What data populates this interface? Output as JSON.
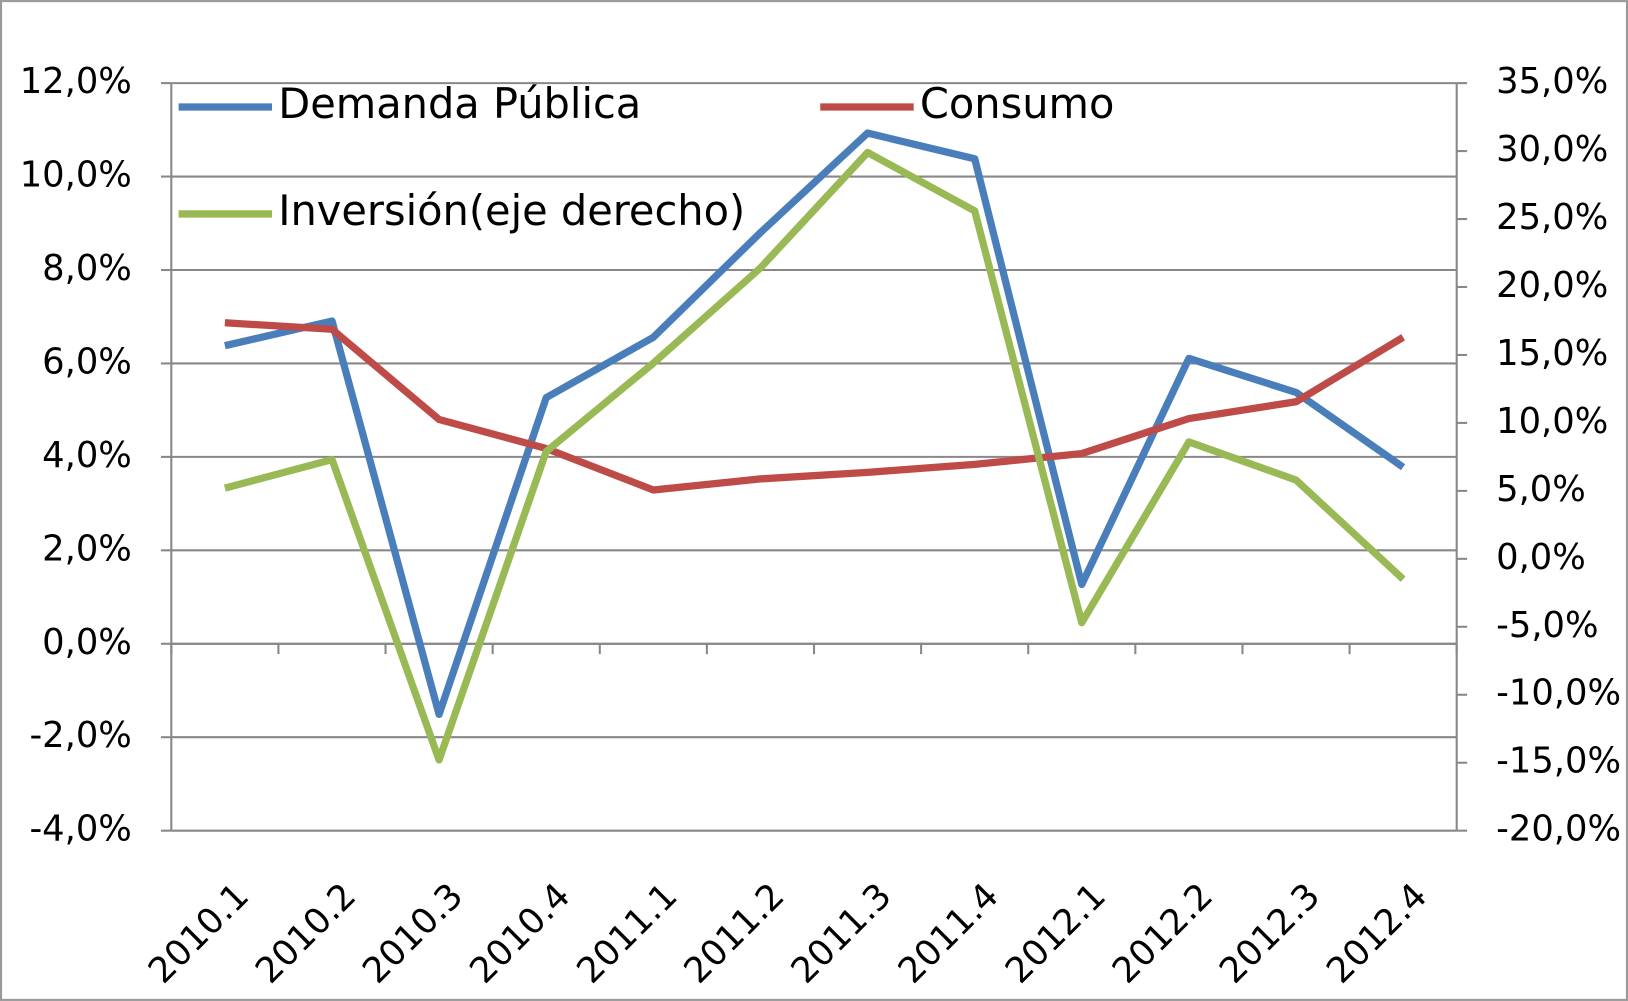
{
  "chart_data": {
    "type": "line",
    "categories": [
      "2010.1",
      "2010.2",
      "2010.3",
      "2010.4",
      "2011.1",
      "2011.2",
      "2011.3",
      "2011.4",
      "2012.1",
      "2012.2",
      "2012.3",
      "2012.4"
    ],
    "series": [
      {
        "name": "Demanda Pública",
        "color": "#4a7ebb",
        "values": [
          6.38,
          6.91,
          -1.51,
          5.27,
          6.56,
          8.8,
          10.93,
          10.38,
          1.27,
          6.11,
          5.38,
          3.78
        ]
      },
      {
        "name": "Consumo",
        "color": "#be4b48",
        "values": [
          6.87,
          6.73,
          4.8,
          4.18,
          3.29,
          3.53,
          3.67,
          3.84,
          4.07,
          4.82,
          5.18,
          6.56
        ]
      },
      {
        "name": "Inversión(eje derecho)",
        "color": "#98b954",
        "axis": "y2",
        "values": [
          5.2,
          7.3,
          -14.8,
          7.9,
          14.4,
          21.4,
          29.9,
          25.6,
          -4.7,
          8.6,
          5.8,
          -1.5
        ]
      }
    ],
    "ylim": [
      -4,
      12
    ],
    "yticks": [
      {
        "value": -4,
        "label": "-4,0%"
      },
      {
        "value": -2,
        "label": "-2,0%"
      },
      {
        "value": 0,
        "label": "0,0%"
      },
      {
        "value": 2,
        "label": "2,0%"
      },
      {
        "value": 4,
        "label": "4,0%"
      },
      {
        "value": 6,
        "label": "6,0%"
      },
      {
        "value": 8,
        "label": "8,0%"
      },
      {
        "value": 10,
        "label": "10,0%"
      },
      {
        "value": 12,
        "label": "12,0%"
      }
    ],
    "y2lim": [
      -20,
      35
    ],
    "y2ticks": [
      {
        "value": -20,
        "label": "-20,0%"
      },
      {
        "value": -15,
        "label": "-15,0%"
      },
      {
        "value": -10,
        "label": "-10,0%"
      },
      {
        "value": -5,
        "label": "-5,0%"
      },
      {
        "value": 0,
        "label": "0,0%"
      },
      {
        "value": 5,
        "label": "5,0%"
      },
      {
        "value": 10,
        "label": "10,0%"
      },
      {
        "value": 15,
        "label": "15,0%"
      },
      {
        "value": 20,
        "label": "20,0%"
      },
      {
        "value": 25,
        "label": "25,0%"
      },
      {
        "value": 30,
        "label": "30,0%"
      },
      {
        "value": 35,
        "label": "35,0%"
      }
    ],
    "grid": true
  }
}
